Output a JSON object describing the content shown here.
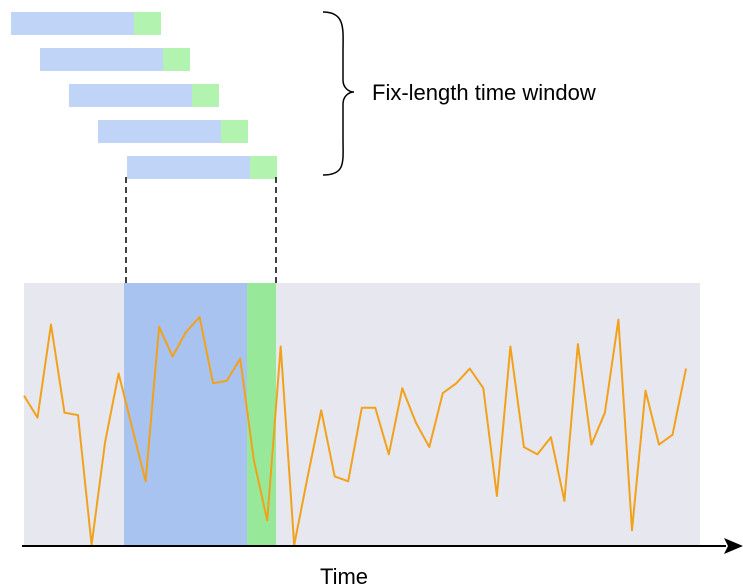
{
  "annotation_label": "Fix-length time window",
  "axis_label": "Time",
  "colors": {
    "background_panel": "#e7e7f0",
    "window_blue": "#bfd4f6",
    "window_green": "#b3f3b0",
    "highlight_blue": "#a8c3f0",
    "highlight_green": "#98e89a",
    "series_line": "#f2a21a",
    "axis": "#000000",
    "dashed_connector": "#000000"
  },
  "sliding_window_count": 5,
  "series": [
    0.61,
    0.52,
    0.9,
    0.54,
    0.53,
    0.0,
    0.42,
    0.7,
    0.48,
    0.26,
    0.89,
    0.77,
    0.87,
    0.93,
    0.66,
    0.67,
    0.76,
    0.35,
    0.1,
    0.81,
    0.0,
    0.28,
    0.55,
    0.28,
    0.26,
    0.56,
    0.56,
    0.37,
    0.64,
    0.5,
    0.4,
    0.62,
    0.66,
    0.72,
    0.64,
    0.2,
    0.81,
    0.4,
    0.37,
    0.44,
    0.18,
    0.82,
    0.41,
    0.54,
    0.92,
    0.06,
    0.63,
    0.41,
    0.45,
    0.72
  ]
}
